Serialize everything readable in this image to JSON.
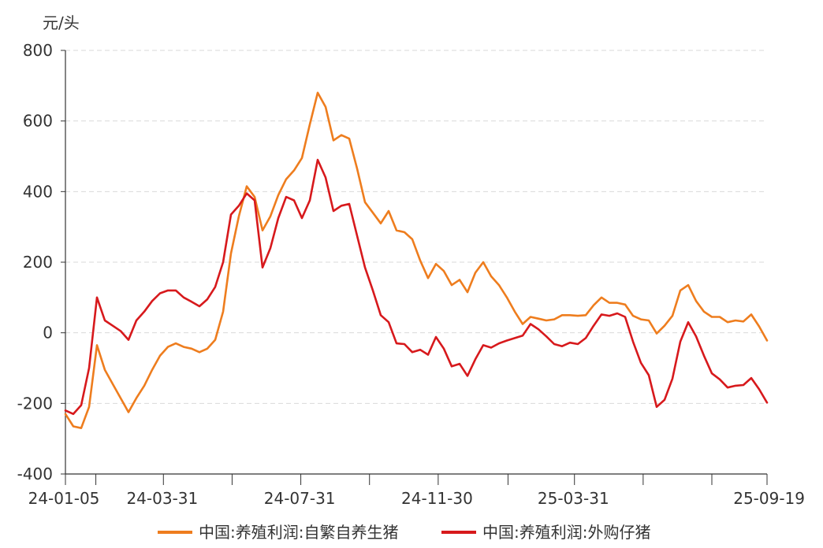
{
  "chart_data": {
    "type": "line",
    "unit_label": "元/头",
    "ylim": [
      -400,
      800
    ],
    "yticks": [
      800,
      600,
      400,
      200,
      0,
      -200,
      -400
    ],
    "xlim": [
      "2024-01-05",
      "2025-09-19"
    ],
    "xtick_labels": [
      "24-01-05",
      "24-03-31",
      "24-07-31",
      "24-11-30",
      "25-03-31",
      "25-09-19"
    ],
    "grid": true,
    "legend_position": "bottom",
    "series": [
      {
        "name": "中国:养殖利润:自繁自养生猪",
        "color": "#ee7d1e",
        "points": [
          [
            "2024-01-05",
            -230
          ],
          [
            "2024-01-12",
            -265
          ],
          [
            "2024-01-19",
            -270
          ],
          [
            "2024-01-26",
            -210
          ],
          [
            "2024-02-02",
            -35
          ],
          [
            "2024-02-09",
            -105
          ],
          [
            "2024-02-16",
            -145
          ],
          [
            "2024-02-23",
            -185
          ],
          [
            "2024-03-01",
            -225
          ],
          [
            "2024-03-08",
            -185
          ],
          [
            "2024-03-15",
            -150
          ],
          [
            "2024-03-22",
            -105
          ],
          [
            "2024-03-29",
            -65
          ],
          [
            "2024-04-05",
            -40
          ],
          [
            "2024-04-12",
            -30
          ],
          [
            "2024-04-19",
            -40
          ],
          [
            "2024-04-26",
            -45
          ],
          [
            "2024-05-03",
            -55
          ],
          [
            "2024-05-10",
            -45
          ],
          [
            "2024-05-17",
            -20
          ],
          [
            "2024-05-24",
            60
          ],
          [
            "2024-05-31",
            225
          ],
          [
            "2024-06-07",
            330
          ],
          [
            "2024-06-14",
            415
          ],
          [
            "2024-06-21",
            385
          ],
          [
            "2024-06-28",
            290
          ],
          [
            "2024-07-05",
            330
          ],
          [
            "2024-07-12",
            390
          ],
          [
            "2024-07-19",
            435
          ],
          [
            "2024-07-26",
            460
          ],
          [
            "2024-08-02",
            495
          ],
          [
            "2024-08-09",
            590
          ],
          [
            "2024-08-16",
            680
          ],
          [
            "2024-08-23",
            640
          ],
          [
            "2024-08-30",
            545
          ],
          [
            "2024-09-06",
            560
          ],
          [
            "2024-09-13",
            550
          ],
          [
            "2024-09-20",
            465
          ],
          [
            "2024-09-27",
            370
          ],
          [
            "2024-10-04",
            340
          ],
          [
            "2024-10-11",
            310
          ],
          [
            "2024-10-18",
            345
          ],
          [
            "2024-10-25",
            290
          ],
          [
            "2024-11-01",
            285
          ],
          [
            "2024-11-08",
            265
          ],
          [
            "2024-11-15",
            205
          ],
          [
            "2024-11-22",
            155
          ],
          [
            "2024-11-29",
            195
          ],
          [
            "2024-12-06",
            175
          ],
          [
            "2024-12-13",
            135
          ],
          [
            "2024-12-20",
            150
          ],
          [
            "2024-12-27",
            115
          ],
          [
            "2025-01-03",
            170
          ],
          [
            "2025-01-10",
            200
          ],
          [
            "2025-01-17",
            160
          ],
          [
            "2025-01-24",
            135
          ],
          [
            "2025-01-31",
            100
          ],
          [
            "2025-02-07",
            60
          ],
          [
            "2025-02-14",
            25
          ],
          [
            "2025-02-21",
            45
          ],
          [
            "2025-02-28",
            40
          ],
          [
            "2025-03-07",
            35
          ],
          [
            "2025-03-14",
            38
          ],
          [
            "2025-03-21",
            50
          ],
          [
            "2025-03-28",
            50
          ],
          [
            "2025-04-04",
            48
          ],
          [
            "2025-04-11",
            50
          ],
          [
            "2025-04-18",
            78
          ],
          [
            "2025-04-25",
            100
          ],
          [
            "2025-05-02",
            85
          ],
          [
            "2025-05-09",
            85
          ],
          [
            "2025-05-16",
            80
          ],
          [
            "2025-05-23",
            48
          ],
          [
            "2025-05-30",
            38
          ],
          [
            "2025-06-06",
            35
          ],
          [
            "2025-06-13",
            -2
          ],
          [
            "2025-06-20",
            20
          ],
          [
            "2025-06-27",
            48
          ],
          [
            "2025-07-04",
            120
          ],
          [
            "2025-07-11",
            135
          ],
          [
            "2025-07-18",
            90
          ],
          [
            "2025-07-25",
            60
          ],
          [
            "2025-08-01",
            45
          ],
          [
            "2025-08-08",
            45
          ],
          [
            "2025-08-15",
            30
          ],
          [
            "2025-08-22",
            35
          ],
          [
            "2025-08-29",
            32
          ],
          [
            "2025-09-05",
            52
          ],
          [
            "2025-09-12",
            18
          ],
          [
            "2025-09-19",
            -22
          ]
        ]
      },
      {
        "name": "中国:养殖利润:外购仔猪",
        "color": "#d7191c",
        "points": [
          [
            "2024-01-05",
            -220
          ],
          [
            "2024-01-12",
            -230
          ],
          [
            "2024-01-19",
            -205
          ],
          [
            "2024-01-26",
            -100
          ],
          [
            "2024-02-02",
            100
          ],
          [
            "2024-02-09",
            35
          ],
          [
            "2024-02-16",
            20
          ],
          [
            "2024-02-23",
            5
          ],
          [
            "2024-03-01",
            -20
          ],
          [
            "2024-03-08",
            35
          ],
          [
            "2024-03-15",
            60
          ],
          [
            "2024-03-22",
            90
          ],
          [
            "2024-03-29",
            112
          ],
          [
            "2024-04-05",
            120
          ],
          [
            "2024-04-12",
            120
          ],
          [
            "2024-04-19",
            100
          ],
          [
            "2024-04-26",
            88
          ],
          [
            "2024-05-03",
            75
          ],
          [
            "2024-05-10",
            95
          ],
          [
            "2024-05-17",
            130
          ],
          [
            "2024-05-24",
            200
          ],
          [
            "2024-05-31",
            335
          ],
          [
            "2024-06-07",
            360
          ],
          [
            "2024-06-14",
            395
          ],
          [
            "2024-06-21",
            375
          ],
          [
            "2024-06-28",
            185
          ],
          [
            "2024-07-05",
            240
          ],
          [
            "2024-07-12",
            325
          ],
          [
            "2024-07-19",
            385
          ],
          [
            "2024-07-26",
            375
          ],
          [
            "2024-08-02",
            325
          ],
          [
            "2024-08-09",
            375
          ],
          [
            "2024-08-16",
            490
          ],
          [
            "2024-08-23",
            440
          ],
          [
            "2024-08-30",
            345
          ],
          [
            "2024-09-06",
            360
          ],
          [
            "2024-09-13",
            365
          ],
          [
            "2024-09-20",
            275
          ],
          [
            "2024-09-27",
            185
          ],
          [
            "2024-10-04",
            120
          ],
          [
            "2024-10-11",
            50
          ],
          [
            "2024-10-18",
            30
          ],
          [
            "2024-10-25",
            -30
          ],
          [
            "2024-11-01",
            -32
          ],
          [
            "2024-11-08",
            -55
          ],
          [
            "2024-11-15",
            -48
          ],
          [
            "2024-11-22",
            -62
          ],
          [
            "2024-11-29",
            -12
          ],
          [
            "2024-12-06",
            -45
          ],
          [
            "2024-12-13",
            -95
          ],
          [
            "2024-12-20",
            -88
          ],
          [
            "2024-12-27",
            -122
          ],
          [
            "2025-01-03",
            -75
          ],
          [
            "2025-01-10",
            -35
          ],
          [
            "2025-01-17",
            -42
          ],
          [
            "2025-01-24",
            -30
          ],
          [
            "2025-01-31",
            -22
          ],
          [
            "2025-02-07",
            -15
          ],
          [
            "2025-02-14",
            -8
          ],
          [
            "2025-02-21",
            25
          ],
          [
            "2025-02-28",
            10
          ],
          [
            "2025-03-07",
            -10
          ],
          [
            "2025-03-14",
            -32
          ],
          [
            "2025-03-21",
            -38
          ],
          [
            "2025-03-28",
            -28
          ],
          [
            "2025-04-04",
            -32
          ],
          [
            "2025-04-11",
            -15
          ],
          [
            "2025-04-18",
            20
          ],
          [
            "2025-04-25",
            52
          ],
          [
            "2025-05-02",
            48
          ],
          [
            "2025-05-09",
            55
          ],
          [
            "2025-05-16",
            45
          ],
          [
            "2025-05-23",
            -25
          ],
          [
            "2025-05-30",
            -85
          ],
          [
            "2025-06-06",
            -120
          ],
          [
            "2025-06-13",
            -210
          ],
          [
            "2025-06-20",
            -190
          ],
          [
            "2025-06-27",
            -130
          ],
          [
            "2025-07-04",
            -25
          ],
          [
            "2025-07-11",
            30
          ],
          [
            "2025-07-18",
            -10
          ],
          [
            "2025-07-25",
            -65
          ],
          [
            "2025-08-01",
            -115
          ],
          [
            "2025-08-08",
            -132
          ],
          [
            "2025-08-15",
            -155
          ],
          [
            "2025-08-22",
            -150
          ],
          [
            "2025-08-29",
            -148
          ],
          [
            "2025-09-05",
            -128
          ],
          [
            "2025-09-12",
            -160
          ],
          [
            "2025-09-19",
            -198
          ]
        ]
      }
    ]
  }
}
